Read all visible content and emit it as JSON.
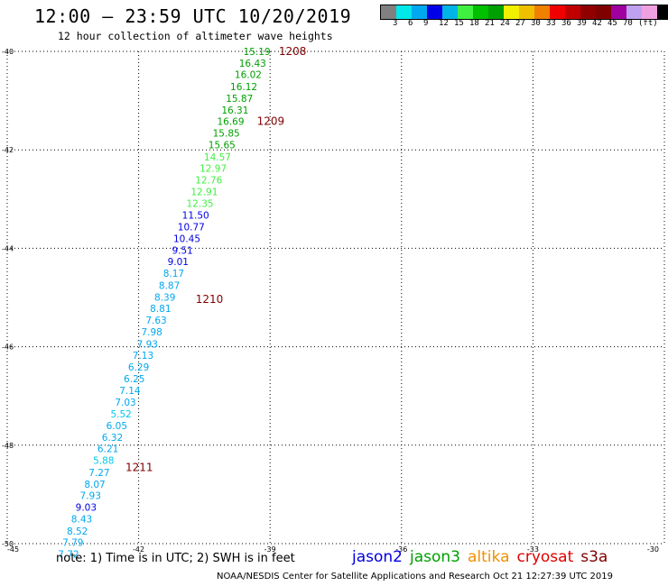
{
  "header": {
    "title": "12:00 – 23:59 UTC 10/20/2019",
    "subtitle": "12 hour collection of altimeter wave heights"
  },
  "legend": {
    "unit": "(ft)",
    "colors": [
      "#808080",
      "#00e8e8",
      "#00a8f0",
      "#0000e8",
      "#00b4e8",
      "#40f040",
      "#00c000",
      "#00a000",
      "#f0f000",
      "#f0c000",
      "#f08000",
      "#f00000",
      "#c00000",
      "#900000",
      "#800000",
      "#a000a0",
      "#c0a0f0",
      "#f0a0e0",
      "#000000"
    ],
    "labels": [
      "3",
      "6",
      "9",
      "12",
      "15",
      "18",
      "21",
      "24",
      "27",
      "30",
      "33",
      "36",
      "39",
      "42",
      "45",
      "70"
    ]
  },
  "axes": {
    "x_ticks": [
      "-45",
      "-42",
      "-39",
      "-36",
      "-33",
      "-30"
    ],
    "y_ticks": [
      "-40",
      "-42",
      "-44",
      "-46",
      "-48",
      "-50"
    ]
  },
  "chart_data": {
    "type": "scatter",
    "xlim": [
      -45,
      -30
    ],
    "ylim": [
      -50,
      -40
    ],
    "grid": true,
    "points": [
      {
        "lon": -39.3,
        "lat": -40.0,
        "label": "15.19",
        "color": "#00a000"
      },
      {
        "lon": -39.4,
        "lat": -40.24,
        "label": "16.43",
        "color": "#00a000"
      },
      {
        "lon": -39.5,
        "lat": -40.47,
        "label": "16.02",
        "color": "#00a000"
      },
      {
        "lon": -39.6,
        "lat": -40.71,
        "label": "16.12",
        "color": "#00a000"
      },
      {
        "lon": -39.7,
        "lat": -40.95,
        "label": "15.87",
        "color": "#00a000"
      },
      {
        "lon": -39.8,
        "lat": -41.19,
        "label": "16.31",
        "color": "#00a000"
      },
      {
        "lon": -39.9,
        "lat": -41.42,
        "label": "16.69",
        "color": "#00a000"
      },
      {
        "lon": -40.0,
        "lat": -41.66,
        "label": "15.85",
        "color": "#00a000"
      },
      {
        "lon": -40.1,
        "lat": -41.9,
        "label": "15.65",
        "color": "#00a000"
      },
      {
        "lon": -40.2,
        "lat": -42.14,
        "label": "14.57",
        "color": "#40f040"
      },
      {
        "lon": -40.3,
        "lat": -42.37,
        "label": "12.97",
        "color": "#40f040"
      },
      {
        "lon": -40.4,
        "lat": -42.61,
        "label": "12.76",
        "color": "#40f040"
      },
      {
        "lon": -40.5,
        "lat": -42.85,
        "label": "12.91",
        "color": "#40f040"
      },
      {
        "lon": -40.6,
        "lat": -43.09,
        "label": "12.35",
        "color": "#40f040"
      },
      {
        "lon": -40.7,
        "lat": -43.32,
        "label": "11.50",
        "color": "#0000e8"
      },
      {
        "lon": -40.8,
        "lat": -43.56,
        "label": "10.77",
        "color": "#0000e8"
      },
      {
        "lon": -40.9,
        "lat": -43.8,
        "label": "10.45",
        "color": "#0000e8"
      },
      {
        "lon": -41.0,
        "lat": -44.04,
        "label": "9.51",
        "color": "#0000e8"
      },
      {
        "lon": -41.1,
        "lat": -44.27,
        "label": "9.01",
        "color": "#0000e8"
      },
      {
        "lon": -41.2,
        "lat": -44.51,
        "label": "8.17",
        "color": "#00a8f0"
      },
      {
        "lon": -41.3,
        "lat": -44.75,
        "label": "8.87",
        "color": "#00a8f0"
      },
      {
        "lon": -41.4,
        "lat": -44.99,
        "label": "8.39",
        "color": "#00a8f0"
      },
      {
        "lon": -41.5,
        "lat": -45.22,
        "label": "8.81",
        "color": "#00a8f0"
      },
      {
        "lon": -41.6,
        "lat": -45.46,
        "label": "7.63",
        "color": "#00a8f0"
      },
      {
        "lon": -41.7,
        "lat": -45.7,
        "label": "7.98",
        "color": "#00a8f0"
      },
      {
        "lon": -41.8,
        "lat": -45.94,
        "label": "7.93",
        "color": "#00a8f0"
      },
      {
        "lon": -41.9,
        "lat": -46.17,
        "label": "7.13",
        "color": "#00a8f0"
      },
      {
        "lon": -42.0,
        "lat": -46.41,
        "label": "6.29",
        "color": "#00a8f0"
      },
      {
        "lon": -42.1,
        "lat": -46.65,
        "label": "6.25",
        "color": "#00a8f0"
      },
      {
        "lon": -42.2,
        "lat": -46.89,
        "label": "7.14",
        "color": "#00a8f0"
      },
      {
        "lon": -42.3,
        "lat": -47.12,
        "label": "7.03",
        "color": "#00a8f0"
      },
      {
        "lon": -42.4,
        "lat": -47.36,
        "label": "5.52",
        "color": "#00c8e8"
      },
      {
        "lon": -42.5,
        "lat": -47.6,
        "label": "6.05",
        "color": "#00a8f0"
      },
      {
        "lon": -42.6,
        "lat": -47.84,
        "label": "6.32",
        "color": "#00a8f0"
      },
      {
        "lon": -42.7,
        "lat": -48.07,
        "label": "6.21",
        "color": "#00a8f0"
      },
      {
        "lon": -42.8,
        "lat": -48.31,
        "label": "5.88",
        "color": "#00c8e8"
      },
      {
        "lon": -42.9,
        "lat": -48.55,
        "label": "7.27",
        "color": "#00a8f0"
      },
      {
        "lon": -43.0,
        "lat": -48.79,
        "label": "8.07",
        "color": "#00a8f0"
      },
      {
        "lon": -43.1,
        "lat": -49.02,
        "label": "7.93",
        "color": "#00a8f0"
      },
      {
        "lon": -43.2,
        "lat": -49.26,
        "label": "9.03",
        "color": "#0000e8"
      },
      {
        "lon": -43.3,
        "lat": -49.5,
        "label": "8.43",
        "color": "#00a8f0"
      },
      {
        "lon": -43.4,
        "lat": -49.74,
        "label": "8.52",
        "color": "#00a8f0"
      },
      {
        "lon": -43.5,
        "lat": -49.97,
        "label": "7.79",
        "color": "#00a8f0"
      },
      {
        "lon": -43.6,
        "lat": -50.21,
        "label": "7.72",
        "color": "#00a8f0"
      }
    ],
    "time_labels": [
      {
        "lon": -38.8,
        "lat": -40.0,
        "text": "1208"
      },
      {
        "lon": -39.3,
        "lat": -41.42,
        "text": "1209"
      },
      {
        "lon": -40.7,
        "lat": -45.04,
        "text": "1210"
      },
      {
        "lon": -42.3,
        "lat": -48.45,
        "text": "1211"
      }
    ]
  },
  "notes": {
    "text": "note: 1) Time is in UTC; 2) SWH is in feet"
  },
  "satellites": [
    {
      "name": "jason2",
      "color": "#0000e0"
    },
    {
      "name": "jason3",
      "color": "#00a000"
    },
    {
      "name": "altika",
      "color": "#f09000"
    },
    {
      "name": "cryosat",
      "color": "#e00000"
    },
    {
      "name": "s3a",
      "color": "#800000"
    }
  ],
  "footer": {
    "text": "NOAA/NESDIS Center for Satellite Applications and Research    Oct 21 12:27:39 UTC 2019"
  }
}
